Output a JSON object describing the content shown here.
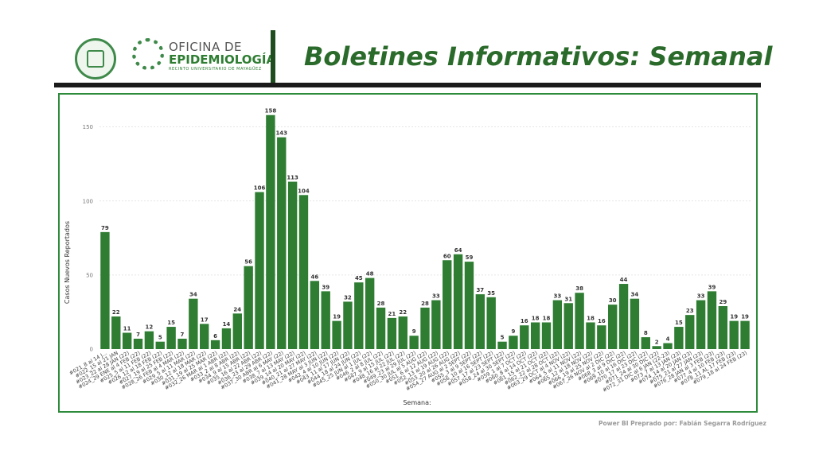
{
  "header": {
    "title": "Boletines Informativos: Semanal",
    "office_line1": "OFICINA DE",
    "office_line2": "EPIDEMIOLOGÍA",
    "office_line3": "RECINTO UNIVERSITARIO DE MAYAGÜEZ"
  },
  "footer": {
    "credit": "Power BI Preprado por: Fabián Segarra Rodríguez"
  },
  "colors": {
    "bar": "#2e7d32",
    "accent": "#2e8b3c",
    "title": "#2a6a2a"
  },
  "icons": [
    "university-seal-icon",
    "epidemiology-logo-icon"
  ],
  "chart_data": {
    "type": "bar",
    "xlabel": "Semana:",
    "ylabel": "Casos Nuevos Reportados",
    "ylim": [
      0,
      160
    ],
    "yticks": [
      0,
      50,
      100,
      150
    ],
    "grid": true,
    "categories": [
      "#021_8 al 14 J...",
      "#022_15 al 21 JAN",
      "#023_22 al 28 JAN (22)",
      "#024_29 ENE al 4 FEB (22)",
      "#025_5 al 11 FEB (22)",
      "#026_12 al 18 FEB (22)",
      "#027_19 al 25 FEB (22)",
      "#028_26 FEB al 4 MAR (22)",
      "#029_5 al 11 MAR (22)",
      "#030_12 al 18 MAR (22)",
      "#031_19 al 25 MAR (22)",
      "#032_26 MAR al 1 ABR (22)",
      "#033_2 al 8 ABR (22)",
      "#034_9 al 15 ABR (22)",
      "#035_16 al 22 ABR (22)",
      "#036_23 al 29 ABR (22)",
      "#037_30 ABR al 6 MAY (22)",
      "#038_7 al 13 MAY (22)",
      "#039_14 al 20 MAY (22)",
      "#040_21 al 27 MAY (22)",
      "#041_28 MAY al 3 JUN (22)",
      "#042_4 al 10 JUN (22)",
      "#043_11 al 17 JUN (22)",
      "#044_18 al 24 JUN (22)",
      "#045_25 JUN al 1 JUL (22)",
      "#046_2 al 8 JUL (22)",
      "#047_9 al 15 JUL (22)",
      "#048_16 al 22 JUL (22)",
      "#049_23 al 29 JUL (22)",
      "#050_30 JUL al 5 AUG (22)",
      "#051_6 al 12 AUG (22)",
      "#052_13 al 19 AUG (22)",
      "#053_20 al 26 AUG (22)",
      "#054_27 AUG al 2 SEPT (22)",
      "#055_3 al 9 SEPT (22)",
      "#056_10 al 16 SEPT (22)",
      "#057_17 al 23 SEPT (22)",
      "#058_24 al 30 SEPT (22)",
      "#059_1 al 7 OCT (22)",
      "#060_8 al 14 OCT (22)",
      "#061_15 al 21 OCT (22)",
      "#062_22 al 28 OCT (22)",
      "#063_29 OCT al 4 NOV (22)",
      "#064_5 al 11 NOV (22)",
      "#065_12 al 18 NOV (22)",
      "#066_19 al 25 NOV (22)",
      "#067_26 NOV al 2 DIC (22)",
      "#068_3 al 9 DIC (22)",
      "#069_10 al 16 DIC (22)",
      "#070_17 al 23 DIC (22)",
      "#071_24 al 30 DIC (22)",
      "#072_31 DIC al 6 JAN (22-23)",
      "#073_7 al 13 JAN (23)",
      "#074_14 al 20 JAN (23)",
      "#075_21 al 27 JAN (23)",
      "#076_28 JAN al 3 FEB (23)",
      "#077_4 al 10 FEB (23)",
      "#078_11 AL 17 FEB (23)",
      "#079_18 al 24 FEB (23)"
    ],
    "values": [
      79,
      22,
      11,
      7,
      12,
      5,
      15,
      7,
      34,
      17,
      6,
      14,
      24,
      56,
      106,
      158,
      143,
      113,
      104,
      46,
      39,
      19,
      32,
      45,
      48,
      28,
      21,
      22,
      9,
      28,
      33,
      60,
      64,
      59,
      37,
      35,
      5,
      9,
      16,
      18,
      18,
      33,
      31,
      38,
      18,
      16,
      30,
      44,
      34,
      8,
      2,
      4,
      15,
      23,
      33,
      39,
      29,
      19,
      19
    ]
  }
}
